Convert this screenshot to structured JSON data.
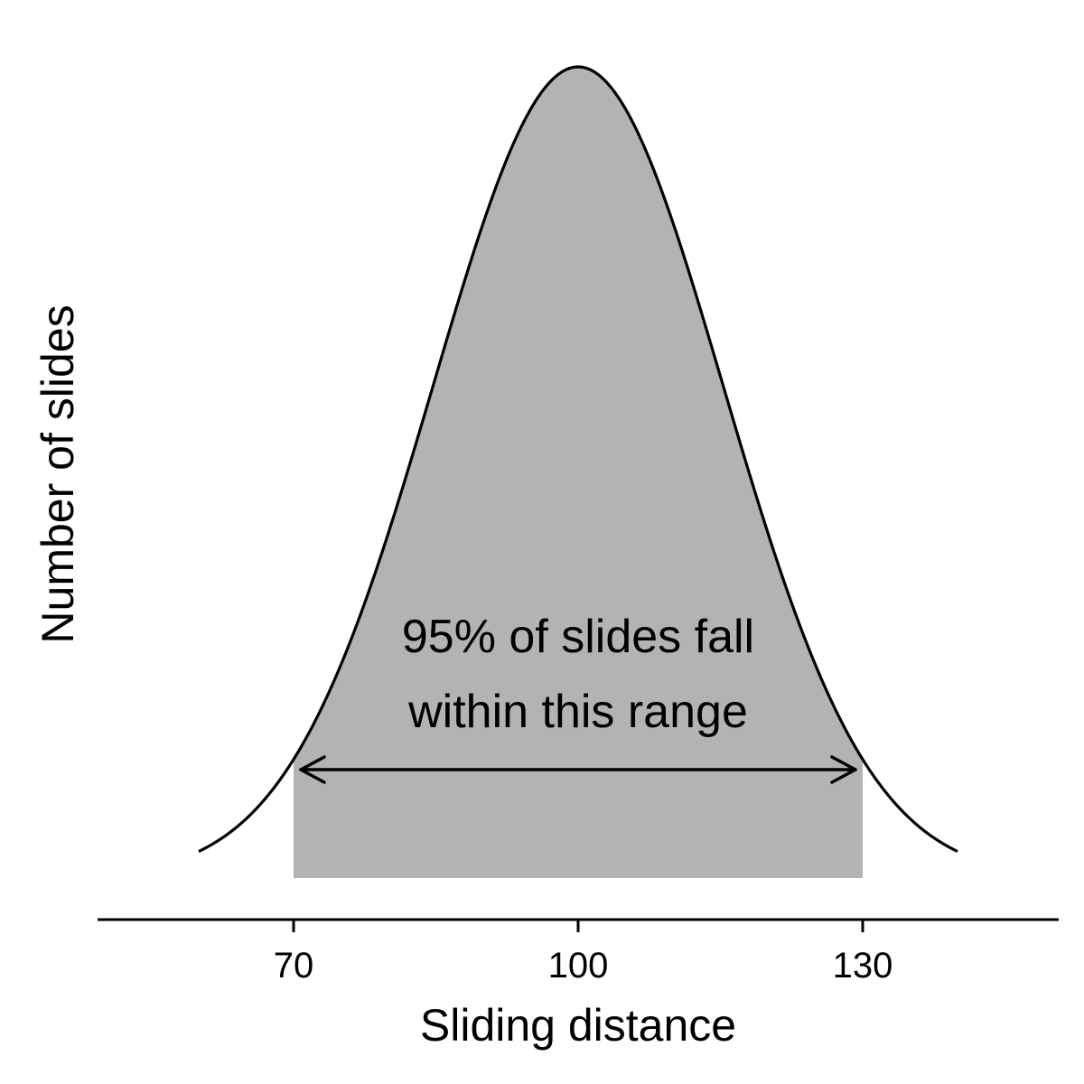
{
  "chart_data": {
    "type": "area",
    "distribution": "normal",
    "mean": 100,
    "sd": 15.3,
    "x_range": [
      60,
      140
    ],
    "shaded_interval": [
      70,
      130
    ],
    "xlim": [
      55,
      145
    ],
    "xticks": [
      70,
      100,
      130
    ],
    "xlabel": "Sliding distance",
    "ylabel": "Number of slides",
    "y_ticks_shown": false,
    "annotation": {
      "lines": [
        "95% of slides fall",
        "within this range"
      ],
      "arrow": "double-headed",
      "arrow_from": 70,
      "arrow_to": 130
    },
    "grid": false,
    "legend": "none",
    "colors": {
      "fill": "#b3b3b3",
      "line": "#000000"
    }
  }
}
